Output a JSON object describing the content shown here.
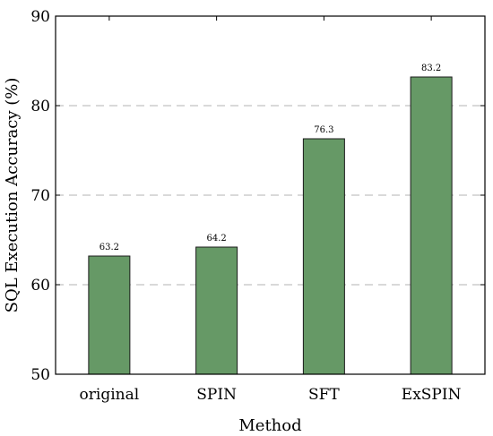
{
  "chart_data": {
    "type": "bar",
    "categories": [
      "original",
      "SPIN",
      "SFT",
      "ExSPIN"
    ],
    "values": [
      63.2,
      64.2,
      76.3,
      83.2
    ],
    "data_labels": [
      "63.2",
      "64.2",
      "76.3",
      "83.2"
    ],
    "title": "",
    "xlabel": "Method",
    "ylabel": "SQL Execution Accuracy (%)",
    "ylim": [
      50,
      90
    ],
    "yticks": [
      50,
      60,
      70,
      80,
      90
    ],
    "grid": "horizontal dashed",
    "bar_color": "#669966",
    "bar_edge_color": "#1a1a1a",
    "grid_color": "#b3b3b3"
  }
}
